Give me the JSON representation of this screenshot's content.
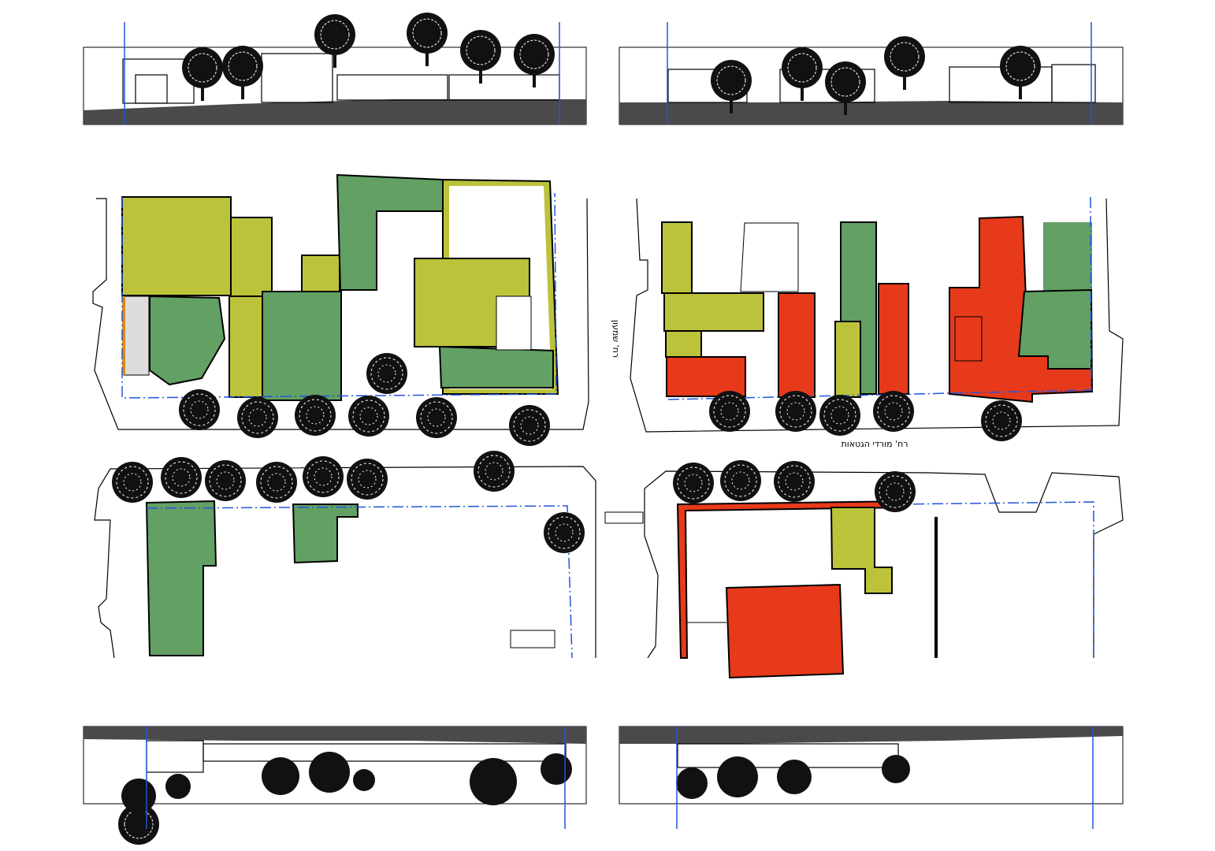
{
  "labels": {
    "street_south": "רח' מורדי הגטאות",
    "street_side": "רח' שמעון"
  }
}
